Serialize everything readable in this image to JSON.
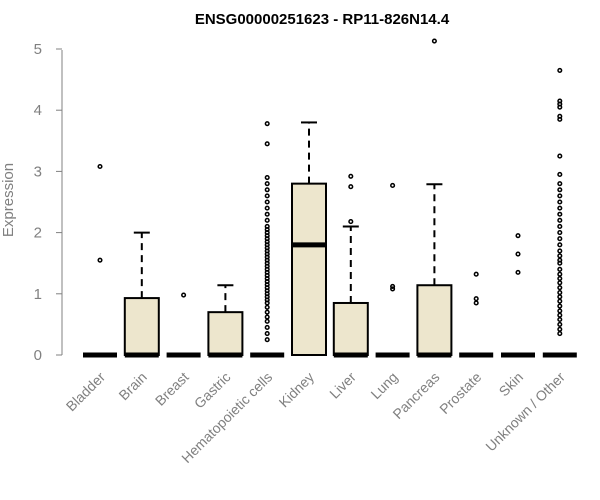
{
  "chart_data": {
    "type": "box",
    "title": "ENSG00000251623 - RP11-826N14.4",
    "ylabel": "Expression",
    "xlabel": "",
    "ylim": [
      0,
      5.2
    ],
    "yticks": [
      0,
      1,
      2,
      3,
      4,
      5
    ],
    "box_fill": "#ede6cd",
    "categories": [
      "Bladder",
      "Brain",
      "Breast",
      "Gastric",
      "Hematopoietic cells",
      "Kidney",
      "Liver",
      "Lung",
      "Pancreas",
      "Prostate",
      "Skin",
      "Unknown / Other"
    ],
    "boxes": [
      {
        "q1": 0,
        "median": 0,
        "q3": 0,
        "whisker_low": 0,
        "whisker_high": 0,
        "outliers": [
          1.55,
          3.08
        ]
      },
      {
        "q1": 0,
        "median": 0,
        "q3": 0.93,
        "whisker_low": 0,
        "whisker_high": 2.0,
        "outliers": []
      },
      {
        "q1": 0,
        "median": 0,
        "q3": 0,
        "whisker_low": 0,
        "whisker_high": 0,
        "outliers": [
          0.98
        ]
      },
      {
        "q1": 0,
        "median": 0,
        "q3": 0.7,
        "whisker_low": 0,
        "whisker_high": 1.14,
        "outliers": []
      },
      {
        "q1": 0,
        "median": 0,
        "q3": 0,
        "whisker_low": 0,
        "whisker_high": 0,
        "outliers": [
          0.25,
          0.35,
          0.45,
          0.55,
          0.62,
          0.7,
          0.78,
          0.85,
          0.9,
          0.95,
          1.0,
          1.05,
          1.1,
          1.15,
          1.2,
          1.25,
          1.3,
          1.35,
          1.4,
          1.45,
          1.5,
          1.55,
          1.6,
          1.65,
          1.7,
          1.75,
          1.8,
          1.85,
          1.9,
          1.95,
          2.0,
          2.05,
          2.1,
          2.2,
          2.3,
          2.4,
          2.5,
          2.6,
          2.7,
          2.8,
          2.9,
          3.45,
          3.78
        ]
      },
      {
        "q1": 0,
        "median": 1.8,
        "q3": 2.8,
        "whisker_low": 0,
        "whisker_high": 3.8,
        "outliers": []
      },
      {
        "q1": 0,
        "median": 0,
        "q3": 0.85,
        "whisker_low": 0,
        "whisker_high": 2.1,
        "outliers": [
          2.18,
          2.75,
          2.92
        ]
      },
      {
        "q1": 0,
        "median": 0,
        "q3": 0,
        "whisker_low": 0,
        "whisker_high": 0,
        "outliers": [
          1.08,
          1.12,
          2.77
        ]
      },
      {
        "q1": 0,
        "median": 0,
        "q3": 1.14,
        "whisker_low": 0,
        "whisker_high": 2.79,
        "outliers": [
          5.13
        ]
      },
      {
        "q1": 0,
        "median": 0,
        "q3": 0,
        "whisker_low": 0,
        "whisker_high": 0,
        "outliers": [
          0.85,
          0.92,
          1.32
        ]
      },
      {
        "q1": 0,
        "median": 0,
        "q3": 0,
        "whisker_low": 0,
        "whisker_high": 0,
        "outliers": [
          1.35,
          1.65,
          1.95
        ]
      },
      {
        "q1": 0,
        "median": 0,
        "q3": 0,
        "whisker_low": 0,
        "whisker_high": 0,
        "outliers": [
          0.35,
          0.42,
          0.5,
          0.58,
          0.65,
          0.72,
          0.8,
          0.88,
          0.95,
          1.02,
          1.1,
          1.18,
          1.25,
          1.32,
          1.4,
          1.5,
          1.55,
          1.62,
          1.7,
          1.8,
          1.9,
          2.0,
          2.1,
          2.2,
          2.3,
          2.4,
          2.5,
          2.6,
          2.7,
          2.8,
          2.95,
          3.25,
          3.85,
          3.9,
          4.05,
          4.1,
          4.15,
          4.65
        ]
      }
    ]
  }
}
